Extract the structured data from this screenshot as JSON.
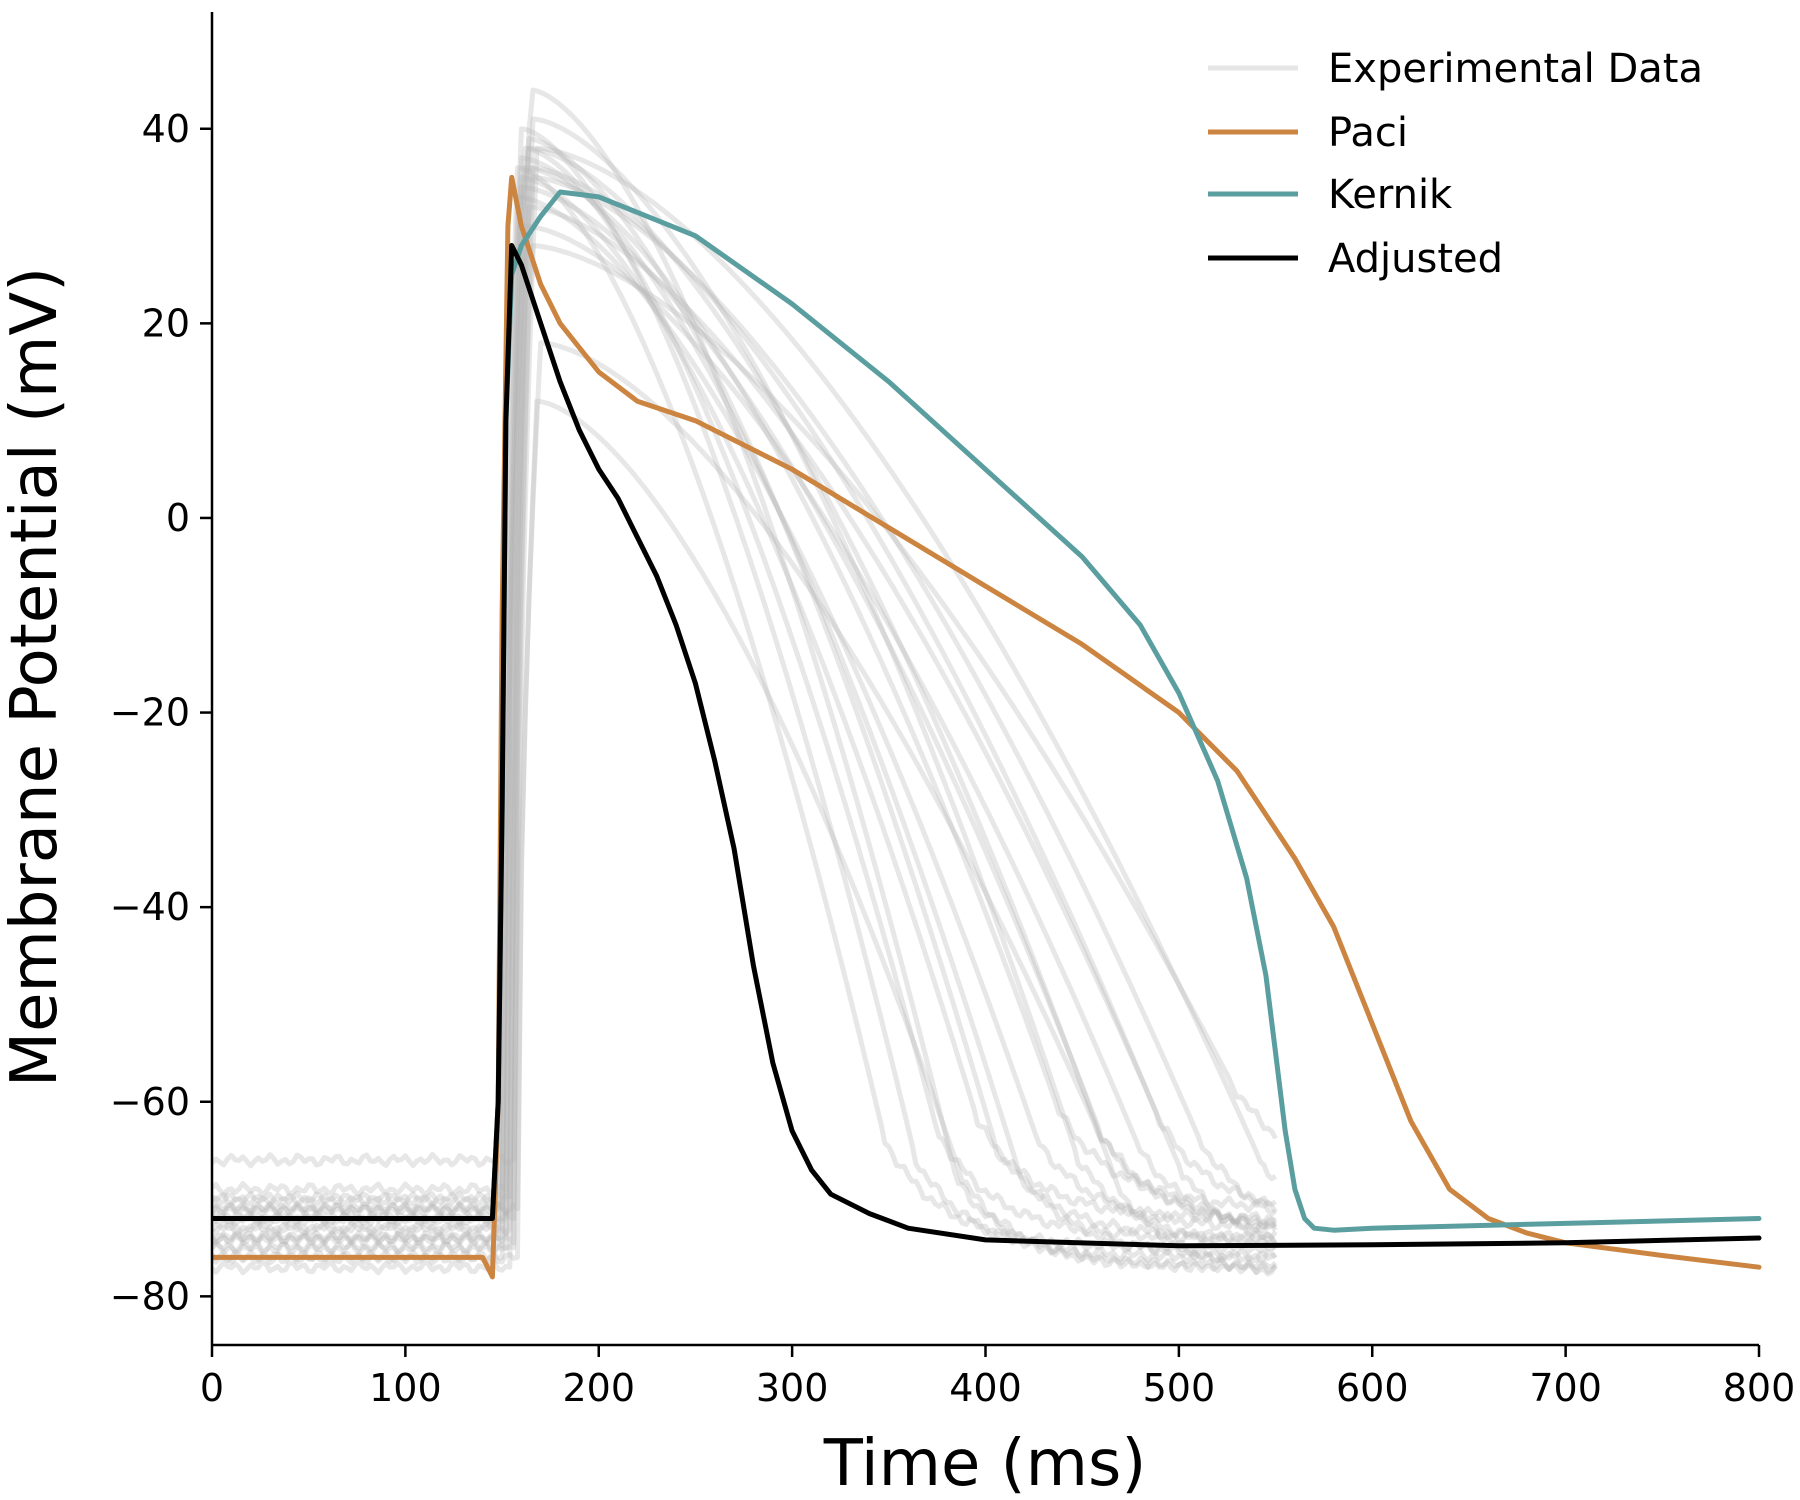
{
  "chart_data": {
    "type": "line",
    "xlabel": "Time (ms)",
    "ylabel": "Membrane Potential (mV)",
    "xlim": [
      0,
      800
    ],
    "ylim": [
      -85,
      52
    ],
    "xticks": [
      0,
      100,
      200,
      300,
      400,
      500,
      600,
      700,
      800
    ],
    "xtick_labels": [
      "0",
      "100",
      "200",
      "300",
      "400",
      "500",
      "600",
      "700",
      "800"
    ],
    "yticks": [
      -80,
      -60,
      -40,
      -20,
      0,
      20,
      40
    ],
    "ytick_labels": [
      "−80",
      "−60",
      "−40",
      "−20",
      "0",
      "20",
      "40"
    ],
    "grid": false,
    "legend_position": "top-right",
    "experimental_traces": [
      {
        "rest": -72,
        "up": 148,
        "peak": 36,
        "pt": 158,
        "apd": 200,
        "tail": -75
      },
      {
        "rest": -74,
        "up": 149,
        "peak": 40,
        "pt": 160,
        "apd": 215,
        "tail": -76
      },
      {
        "rest": -71,
        "up": 150,
        "peak": 38,
        "pt": 162,
        "apd": 225,
        "tail": -74
      },
      {
        "rest": -76,
        "up": 150,
        "peak": 44,
        "pt": 165,
        "apd": 235,
        "tail": -77
      },
      {
        "rest": -70,
        "up": 151,
        "peak": 35,
        "pt": 160,
        "apd": 245,
        "tail": -72
      },
      {
        "rest": -73,
        "up": 151,
        "peak": 39,
        "pt": 163,
        "apd": 255,
        "tail": -74
      },
      {
        "rest": -75,
        "up": 152,
        "peak": 37,
        "pt": 160,
        "apd": 265,
        "tail": -76
      },
      {
        "rest": -72,
        "up": 152,
        "peak": 33,
        "pt": 158,
        "apd": 275,
        "tail": -73
      },
      {
        "rest": -69,
        "up": 153,
        "peak": 36,
        "pt": 162,
        "apd": 285,
        "tail": -71
      },
      {
        "rest": -74,
        "up": 153,
        "peak": 41,
        "pt": 166,
        "apd": 295,
        "tail": -75
      },
      {
        "rest": -71,
        "up": 154,
        "peak": 34,
        "pt": 160,
        "apd": 305,
        "tail": -73
      },
      {
        "rest": -77,
        "up": 154,
        "peak": 38,
        "pt": 164,
        "apd": 315,
        "tail": -78
      },
      {
        "rest": -73,
        "up": 155,
        "peak": 30,
        "pt": 162,
        "apd": 325,
        "tail": -74
      },
      {
        "rest": -70,
        "up": 155,
        "peak": 36,
        "pt": 165,
        "apd": 335,
        "tail": -72
      },
      {
        "rest": -75,
        "up": 156,
        "peak": 32,
        "pt": 163,
        "apd": 345,
        "tail": -76
      },
      {
        "rest": -72,
        "up": 156,
        "peak": 35,
        "pt": 166,
        "apd": 355,
        "tail": -74
      },
      {
        "rest": -66,
        "up": 157,
        "peak": 28,
        "pt": 165,
        "apd": 370,
        "tail": -68
      },
      {
        "rest": -74,
        "up": 157,
        "peak": 38,
        "pt": 168,
        "apd": 385,
        "tail": -75
      },
      {
        "rest": -71,
        "up": 158,
        "peak": 18,
        "pt": 170,
        "apd": 300,
        "tail": -73
      },
      {
        "rest": -76,
        "up": 158,
        "peak": 12,
        "pt": 168,
        "apd": 230,
        "tail": -77
      }
    ],
    "series": [
      {
        "name": "Paci",
        "color": "#cc8540",
        "x": [
          0,
          140,
          145,
          148,
          150,
          153,
          155,
          160,
          170,
          180,
          200,
          220,
          250,
          300,
          350,
          400,
          450,
          500,
          530,
          560,
          580,
          600,
          620,
          640,
          660,
          680,
          700,
          750,
          800
        ],
        "y": [
          -76,
          -76,
          -78,
          -60,
          -10,
          30,
          35,
          30,
          24,
          20,
          15,
          12,
          10,
          5,
          -1,
          -7,
          -13,
          -20,
          -26,
          -35,
          -42,
          -52,
          -62,
          -69,
          -72,
          -73.5,
          -74.5,
          -75.8,
          -77
        ]
      },
      {
        "name": "Kernik",
        "color": "#5b9ea0",
        "x": [
          0,
          140,
          145,
          148,
          150,
          152,
          155,
          160,
          170,
          180,
          200,
          250,
          300,
          350,
          400,
          450,
          480,
          500,
          520,
          535,
          545,
          550,
          555,
          560,
          565,
          570,
          580,
          600,
          700,
          800
        ],
        "y": [
          -72,
          -72,
          -72,
          -60,
          -30,
          10,
          25,
          28,
          31,
          33.5,
          33,
          29,
          22,
          14,
          5,
          -4,
          -11,
          -18,
          -27,
          -37,
          -47,
          -55,
          -63,
          -69,
          -72,
          -73,
          -73.2,
          -73,
          -72.5,
          -72
        ]
      },
      {
        "name": "Adjusted",
        "color": "#000000",
        "x": [
          0,
          130,
          145,
          148,
          150,
          152,
          155,
          160,
          170,
          180,
          190,
          200,
          210,
          220,
          230,
          240,
          250,
          260,
          270,
          280,
          290,
          300,
          310,
          320,
          340,
          360,
          400,
          500,
          600,
          700,
          800
        ],
        "y": [
          -72,
          -72,
          -72,
          -60,
          -30,
          10,
          28,
          26,
          20,
          14,
          9,
          5,
          2,
          -2,
          -6,
          -11,
          -17,
          -25,
          -34,
          -46,
          -56,
          -63,
          -67,
          -69.5,
          -71.5,
          -73,
          -74.2,
          -74.8,
          -74.7,
          -74.5,
          -74
        ]
      }
    ],
    "legend": [
      {
        "label": "Experimental Data",
        "color": "#e6e6e6"
      },
      {
        "label": "Paci",
        "color": "#cc8540"
      },
      {
        "label": "Kernik",
        "color": "#5b9ea0"
      },
      {
        "label": "Adjusted",
        "color": "#000000"
      }
    ]
  }
}
